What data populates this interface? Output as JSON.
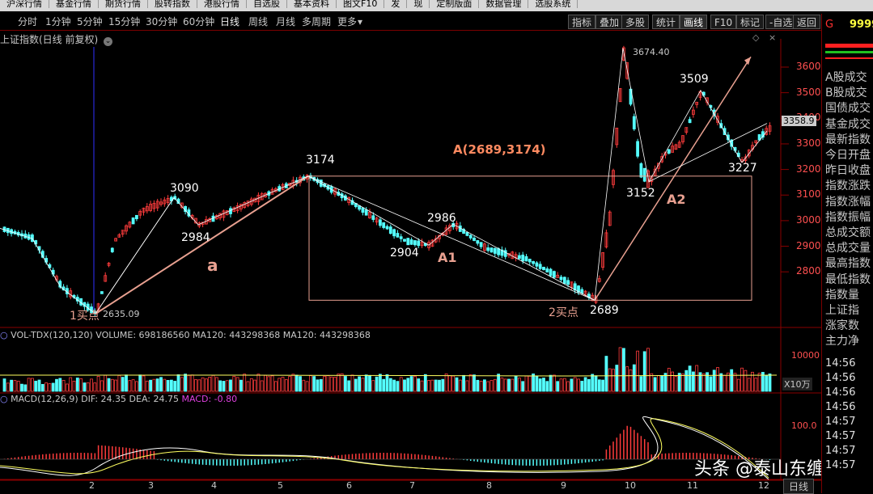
{
  "top_menu": [
    "沪深行情",
    "基金行情",
    "期货行情",
    "股转指数",
    "港股行情",
    "自选股",
    "基本资料",
    "图文F10",
    "发",
    "现",
    "定制版面",
    "数据管理",
    "选股系统"
  ],
  "period_tabs": [
    "分时",
    "1分钟",
    "5分钟",
    "15分钟",
    "30分钟",
    "60分钟",
    "日线",
    "周线",
    "月线",
    "多周期",
    "更多"
  ],
  "active_period": "日线",
  "toolbar_buttons": [
    "指标",
    "叠加",
    "多股",
    "统计",
    "画线",
    "F10",
    "标记",
    "-自选",
    "返回"
  ],
  "chart_title": "上证指数(日线 前复权)",
  "stock_code_prefix": "G",
  "stock_code": "9999",
  "price_axis": [
    "3600",
    "3500",
    "3400",
    "3300",
    "3200",
    "3100",
    "3000",
    "2900",
    "2800"
  ],
  "current_price": "3358.9",
  "annotations": {
    "peak_label": "3674.40",
    "p3509": "3509",
    "p3174": "3174",
    "p3090": "3090",
    "p2984": "2984",
    "p2986": "2986",
    "p2904": "2904",
    "p3152": "3152",
    "p3227": "3227",
    "p2689": "2689",
    "low_label": "2635.09",
    "buy1": "1买点",
    "buy2": "2买点",
    "box_label": "A(2689,3174)",
    "a": "a",
    "A1": "A1",
    "A2": "A2"
  },
  "volume_header": "VOL-TDX(120,120)  VOLUME: 698186560  MA120: 443298368  MA120: 443298368",
  "volume_axis": [
    "10000",
    "X10万"
  ],
  "macd_header_main": "MACD(12,26,9)  DIF: 24.35  DEA: 24.75  ",
  "macd_value": "MACD: -0.80",
  "macd_axis": "100.0",
  "x_axis": [
    "2",
    "3",
    "4",
    "5",
    "6",
    "7",
    "8",
    "9",
    "10",
    "11",
    "12"
  ],
  "bottom_tab": "日线",
  "watermark": "头条 @泰山东缠",
  "right_panel": [
    "A股成交",
    "B股成交",
    "国债成交",
    "基金成交",
    "最新指数",
    "今日开盘",
    "昨日收盘",
    "指数涨跌",
    "指数涨幅",
    "指数振幅",
    "总成交额",
    "总成交量",
    "最高指数",
    "最低指数",
    "指数量",
    "上证指",
    "涨家数",
    "主力净"
  ],
  "right_times": [
    "14:56",
    "14:56",
    "14:56",
    "14:56",
    "14:57",
    "14:57",
    "14:57",
    "14:57"
  ],
  "colors": {
    "up": "#ff3c3c",
    "down": "#54ffff",
    "box": "#e8a090",
    "annotation": "#e8a090",
    "menu_bg": "#d8d8d8"
  },
  "chart_data": {
    "type": "candlestick",
    "xlabel": "",
    "ylabel": "",
    "ylim": [
      2600,
      3700
    ],
    "key_points": [
      {
        "label": "2635.09",
        "value": 2635.09
      },
      {
        "label": "3090",
        "value": 3090
      },
      {
        "label": "2984",
        "value": 2984
      },
      {
        "label": "3174",
        "value": 3174
      },
      {
        "label": "2986",
        "value": 2986
      },
      {
        "label": "2904",
        "value": 2904
      },
      {
        "label": "2689",
        "value": 2689
      },
      {
        "label": "3674.40",
        "value": 3674.4
      },
      {
        "label": "3152",
        "value": 3152
      },
      {
        "label": "3509",
        "value": 3509
      },
      {
        "label": "3227",
        "value": 3227
      }
    ],
    "zone": {
      "low": 2689,
      "high": 3174
    }
  }
}
